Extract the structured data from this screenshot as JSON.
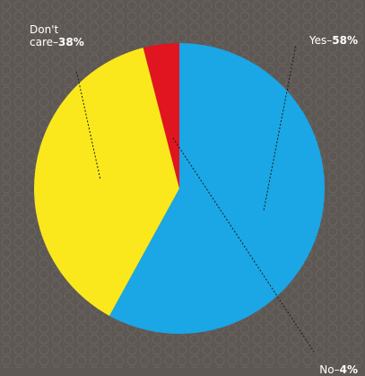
{
  "chart_data": {
    "type": "pie",
    "categories": [
      "Yes",
      "Don't care",
      "No"
    ],
    "values": [
      58,
      38,
      4
    ],
    "units": "%",
    "colors": [
      "#1ba6e5",
      "#fae81c",
      "#e1151f"
    ],
    "slice_labels": [
      {
        "category_text": "Yes",
        "value_text": "58%"
      },
      {
        "category_text": "Don't\ncare",
        "value_text": "38%"
      },
      {
        "category_text": "No",
        "value_text": "4%"
      }
    ],
    "start_angle_deg": 0,
    "direction": "clockwise",
    "legend": "none",
    "background_color": "#5e5854",
    "leader_line_color": "#1a1a1a"
  }
}
